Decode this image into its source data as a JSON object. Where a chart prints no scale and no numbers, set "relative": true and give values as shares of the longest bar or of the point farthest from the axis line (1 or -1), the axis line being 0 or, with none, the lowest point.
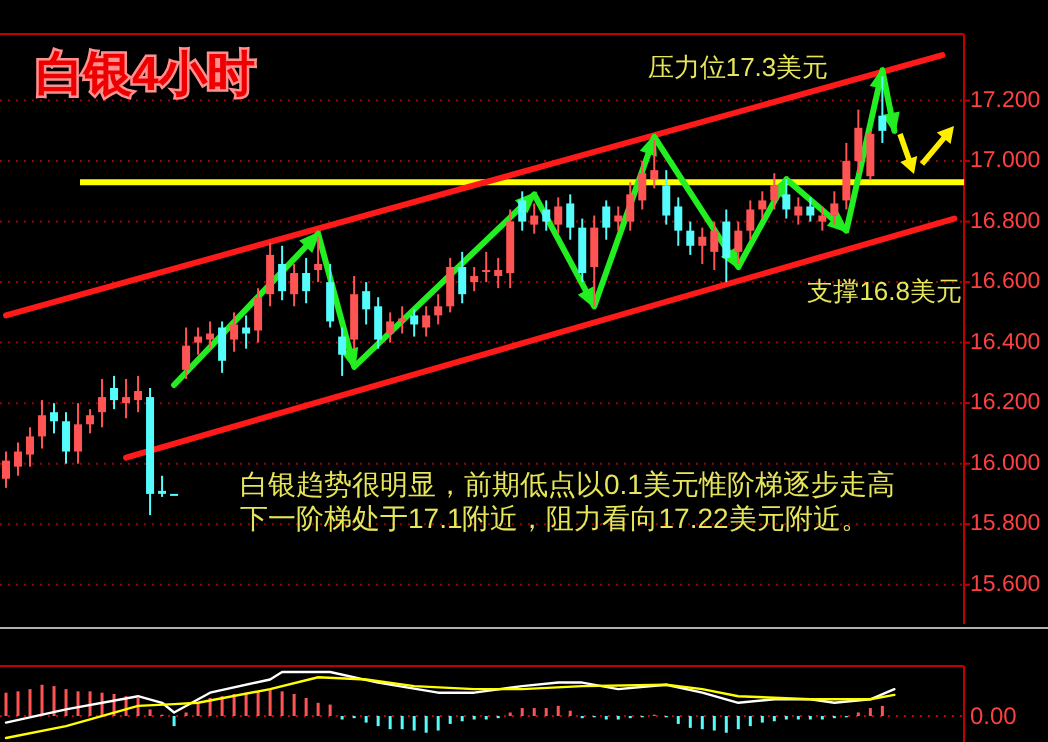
{
  "chart_data": [
    {
      "type": "candlestick",
      "title": "白银4小时",
      "annotations": [
        "压力位17.3美元",
        "支撑16.8美元",
        "白银趋势很明显，前期低点以0.1美元惟阶梯逐步走高",
        "下一阶梯处于17.1附近，阻力看向17.22美元附近。"
      ],
      "categories": [
        null,
        null,
        null,
        null,
        null,
        null,
        null,
        null,
        null,
        null,
        null,
        null,
        null,
        null,
        null,
        null,
        null,
        null,
        null,
        null,
        null,
        null,
        null,
        null,
        null,
        null,
        null,
        null,
        null,
        null,
        null,
        null,
        null,
        null,
        null,
        null,
        null,
        null,
        null,
        null,
        null,
        null,
        null,
        null,
        null,
        null,
        null,
        null,
        null,
        null,
        null,
        null,
        null,
        null,
        null,
        null,
        null,
        null,
        null,
        null,
        null,
        null,
        null,
        null,
        null,
        null,
        null,
        null,
        null,
        null,
        null,
        null,
        null,
        null,
        null,
        null,
        null,
        null,
        null,
        null
      ],
      "ohlc": [
        [
          15.95,
          16.04,
          15.92,
          16.01
        ],
        [
          15.99,
          16.07,
          15.96,
          16.04
        ],
        [
          16.03,
          16.12,
          15.99,
          16.09
        ],
        [
          16.09,
          16.21,
          16.05,
          16.16
        ],
        [
          16.17,
          16.2,
          16.1,
          16.14
        ],
        [
          16.14,
          16.17,
          16.0,
          16.04
        ],
        [
          16.04,
          16.2,
          16.0,
          16.13
        ],
        [
          16.13,
          16.18,
          16.1,
          16.16
        ],
        [
          16.17,
          16.28,
          16.12,
          16.22
        ],
        [
          16.25,
          16.29,
          16.18,
          16.21
        ],
        [
          16.2,
          16.28,
          16.15,
          16.22
        ],
        [
          16.21,
          16.29,
          16.17,
          16.24
        ],
        [
          16.22,
          16.25,
          15.83,
          15.9
        ],
        [
          15.91,
          15.96,
          15.89,
          15.9
        ],
        [
          15.9,
          15.9,
          15.9,
          15.9
        ],
        [
          16.31,
          16.45,
          16.28,
          16.39
        ],
        [
          16.4,
          16.45,
          16.36,
          16.42
        ],
        [
          16.41,
          16.47,
          16.38,
          16.43
        ],
        [
          16.45,
          16.47,
          16.3,
          16.34
        ],
        [
          16.41,
          16.5,
          16.37,
          16.46
        ],
        [
          16.45,
          16.49,
          16.38,
          16.43
        ],
        [
          16.44,
          16.58,
          16.4,
          16.55
        ],
        [
          16.56,
          16.73,
          16.52,
          16.69
        ],
        [
          16.66,
          16.72,
          16.54,
          16.57
        ],
        [
          16.56,
          16.66,
          16.52,
          16.63
        ],
        [
          16.63,
          16.68,
          16.53,
          16.57
        ],
        [
          16.64,
          16.75,
          16.6,
          16.66
        ],
        [
          16.6,
          16.66,
          16.45,
          16.47
        ],
        [
          16.42,
          16.45,
          16.29,
          16.36
        ],
        [
          16.41,
          16.62,
          16.38,
          16.56
        ],
        [
          16.57,
          16.6,
          16.46,
          16.51
        ],
        [
          16.52,
          16.55,
          16.38,
          16.41
        ],
        [
          16.43,
          16.5,
          16.4,
          16.47
        ],
        [
          16.47,
          16.52,
          16.43,
          16.48
        ],
        [
          16.49,
          16.51,
          16.42,
          16.46
        ],
        [
          16.45,
          16.52,
          16.42,
          16.49
        ],
        [
          16.49,
          16.56,
          16.46,
          16.52
        ],
        [
          16.52,
          16.68,
          16.5,
          16.65
        ],
        [
          16.65,
          16.7,
          16.53,
          16.56
        ],
        [
          16.6,
          16.65,
          16.57,
          16.62
        ],
        [
          16.64,
          16.7,
          16.6,
          16.64
        ],
        [
          16.62,
          16.68,
          16.58,
          16.64
        ],
        [
          16.63,
          16.84,
          16.58,
          16.8
        ],
        [
          16.87,
          16.9,
          16.77,
          16.8
        ],
        [
          16.79,
          16.86,
          16.76,
          16.82
        ],
        [
          16.84,
          16.87,
          16.77,
          16.8
        ],
        [
          16.79,
          16.88,
          16.76,
          16.85
        ],
        [
          16.86,
          16.89,
          16.74,
          16.78
        ],
        [
          16.78,
          16.81,
          16.6,
          16.63
        ],
        [
          16.65,
          16.82,
          16.52,
          16.78
        ],
        [
          16.85,
          16.87,
          16.74,
          16.78
        ],
        [
          16.8,
          16.85,
          16.77,
          16.82
        ],
        [
          16.8,
          16.93,
          16.77,
          16.89
        ],
        [
          16.87,
          17.0,
          16.84,
          16.96
        ],
        [
          16.94,
          17.07,
          16.91,
          16.97
        ],
        [
          16.92,
          16.97,
          16.79,
          16.82
        ],
        [
          16.85,
          16.88,
          16.72,
          16.77
        ],
        [
          16.77,
          16.8,
          16.69,
          16.72
        ],
        [
          16.72,
          16.78,
          16.66,
          16.75
        ],
        [
          16.7,
          16.8,
          16.64,
          16.77
        ],
        [
          16.8,
          16.84,
          16.6,
          16.68
        ],
        [
          16.7,
          16.8,
          16.66,
          16.77
        ],
        [
          16.77,
          16.87,
          16.74,
          16.84
        ],
        [
          16.84,
          16.9,
          16.81,
          16.87
        ],
        [
          16.87,
          16.96,
          16.84,
          16.92
        ],
        [
          16.89,
          16.94,
          16.81,
          16.84
        ],
        [
          16.82,
          16.88,
          16.79,
          16.85
        ],
        [
          16.85,
          16.88,
          16.8,
          16.82
        ],
        [
          16.8,
          16.85,
          16.77,
          16.82
        ],
        [
          16.82,
          16.9,
          16.79,
          16.86
        ],
        [
          16.87,
          17.06,
          16.84,
          17.0
        ],
        [
          17.0,
          17.17,
          16.96,
          17.11
        ],
        [
          16.95,
          17.1,
          16.94,
          17.09
        ],
        [
          17.15,
          17.28,
          17.06,
          17.1
        ],
        null,
        null,
        null,
        null,
        null,
        null
      ],
      "colors": [
        "#ff5454",
        "#ff5454",
        "#ff5454",
        "#ff5454",
        "#54fcfc",
        "#54fcfc",
        "#ff5454",
        "#ff5454",
        "#ff5454",
        "#54fcfc",
        "#ff5454",
        "#ff5454",
        "#54fcfc",
        "#54fcfc",
        "#54fcfc",
        "#ff5454",
        "#ff5454",
        "#ff5454",
        "#54fcfc",
        "#ff5454",
        "#54fcfc",
        "#ff5454",
        "#ff5454",
        "#54fcfc",
        "#ff5454",
        "#54fcfc",
        "#ff5454",
        "#54fcfc",
        "#54fcfc",
        "#ff5454",
        "#54fcfc",
        "#54fcfc",
        "#ff5454",
        "#ff5454",
        "#54fcfc",
        "#ff5454",
        "#ff5454",
        "#ff5454",
        "#54fcfc",
        "#ff5454",
        "#ff5454",
        "#ff5454",
        "#ff5454",
        "#54fcfc",
        "#ff5454",
        "#54fcfc",
        "#ff5454",
        "#54fcfc",
        "#54fcfc",
        "#ff5454",
        "#54fcfc",
        "#ff5454",
        "#ff5454",
        "#ff5454",
        "#ff5454",
        "#54fcfc",
        "#54fcfc",
        "#54fcfc",
        "#ff5454",
        "#ff5454",
        "#54fcfc",
        "#ff5454",
        "#ff5454",
        "#ff5454",
        "#ff5454",
        "#54fcfc",
        "#ff5454",
        "#54fcfc",
        "#ff5454",
        "#ff5454",
        "#ff5454",
        "#ff5454",
        "#ff5454",
        "#54fcfc",
        null,
        null,
        null,
        null,
        null,
        null
      ],
      "series": [
        {
          "type": "line",
          "color": "#ff1a1a",
          "values": [
            16.49,
            null,
            null,
            null,
            null,
            null,
            null,
            null,
            null,
            null,
            null,
            null,
            null,
            null,
            null,
            null,
            null,
            null,
            null,
            null,
            null,
            null,
            null,
            null,
            null,
            null,
            null,
            null,
            null,
            null,
            null,
            null,
            null,
            null,
            null,
            null,
            null,
            null,
            null,
            null,
            null,
            null,
            null,
            null,
            null,
            null,
            null,
            null,
            null,
            null,
            null,
            null,
            null,
            null,
            null,
            null,
            null,
            null,
            null,
            null,
            null,
            null,
            null,
            null,
            null,
            null,
            null,
            null,
            null,
            null,
            null,
            null,
            null,
            null,
            null,
            null,
            null,
            null,
            17.35,
            null
          ]
        },
        {
          "type": "line",
          "color": "#ff1a1a",
          "values": [
            null,
            null,
            null,
            null,
            null,
            null,
            null,
            null,
            null,
            null,
            16.02,
            null,
            null,
            null,
            null,
            null,
            null,
            null,
            null,
            null,
            null,
            null,
            null,
            null,
            null,
            null,
            null,
            null,
            null,
            null,
            null,
            null,
            null,
            null,
            null,
            null,
            null,
            null,
            null,
            null,
            null,
            null,
            null,
            null,
            null,
            null,
            null,
            null,
            null,
            null,
            null,
            null,
            null,
            null,
            null,
            null,
            null,
            null,
            null,
            null,
            null,
            null,
            null,
            null,
            null,
            null,
            null,
            null,
            null,
            null,
            null,
            null,
            null,
            null,
            null,
            null,
            null,
            null,
            null,
            16.81
          ]
        },
        {
          "type": "line",
          "color": "#22ee22",
          "values": [
            null,
            null,
            null,
            null,
            null,
            null,
            null,
            null,
            null,
            null,
            null,
            null,
            null,
            null,
            16.26,
            null,
            null,
            null,
            null,
            null,
            null,
            null,
            null,
            null,
            null,
            null,
            16.76,
            null,
            null,
            16.32,
            null,
            null,
            null,
            null,
            null,
            null,
            null,
            null,
            null,
            null,
            null,
            null,
            null,
            null,
            16.89,
            null,
            null,
            null,
            null,
            16.52,
            null,
            null,
            null,
            null,
            17.08,
            null,
            null,
            null,
            null,
            null,
            null,
            16.65,
            null,
            null,
            null,
            16.94,
            null,
            null,
            null,
            null,
            16.77,
            null,
            null,
            17.3,
            17.1,
            null,
            null,
            null,
            null,
            null
          ]
        }
      ],
      "ref_lines": [
        {
          "axis": "y",
          "value": 16.93,
          "color": "#ffff00"
        }
      ],
      "ylim": [
        15.47,
        17.42
      ],
      "yticks": [
        {
          "value": 15.6,
          "label": "15.600"
        },
        {
          "value": 15.8,
          "label": "15.800"
        },
        {
          "value": 16.0,
          "label": "16.000"
        },
        {
          "value": 16.2,
          "label": "16.200"
        },
        {
          "value": 16.4,
          "label": "16.400"
        },
        {
          "value": 16.6,
          "label": "16.600"
        },
        {
          "value": 16.8,
          "label": "16.800"
        },
        {
          "value": 17.0,
          "label": "17.000"
        },
        {
          "value": 17.2,
          "label": "17.200"
        }
      ],
      "grid": "y",
      "tick_labels": "y"
    },
    {
      "type": "bar",
      "relative": true,
      "tick_labels": false,
      "categories": [
        null,
        null,
        null,
        null,
        null,
        null,
        null,
        null,
        null,
        null,
        null,
        null,
        null,
        null,
        null,
        null,
        null,
        null,
        null,
        null,
        null,
        null,
        null,
        null,
        null,
        null,
        null,
        null,
        null,
        null,
        null,
        null,
        null,
        null,
        null,
        null,
        null,
        null,
        null,
        null,
        null,
        null,
        null,
        null,
        null,
        null,
        null,
        null,
        null,
        null,
        null,
        null,
        null,
        null,
        null,
        null,
        null,
        null,
        null,
        null,
        null,
        null,
        null,
        null,
        null,
        null,
        null,
        null,
        null,
        null,
        null,
        null,
        null,
        null,
        null,
        null,
        null,
        null,
        null,
        null
      ],
      "series": [
        {
          "type": "bar",
          "values": [
            0.53,
            0.56,
            0.61,
            0.71,
            0.68,
            0.61,
            0.56,
            0.56,
            0.53,
            0.5,
            0.45,
            0.41,
            0.15,
            0.03,
            -0.23,
            0.08,
            0.3,
            0.41,
            0.45,
            0.5,
            0.53,
            0.56,
            0.61,
            0.56,
            0.5,
            0.41,
            0.3,
            0.26,
            -0.08,
            -0.05,
            -0.15,
            -0.23,
            -0.3,
            -0.3,
            -0.33,
            -0.38,
            -0.33,
            -0.18,
            -0.12,
            -0.08,
            -0.08,
            -0.05,
            0.08,
            0.18,
            0.18,
            0.18,
            0.23,
            0.12,
            -0.05,
            -0.03,
            -0.08,
            -0.08,
            -0.05,
            -0.03,
            0.03,
            -0.03,
            -0.18,
            -0.27,
            -0.3,
            -0.33,
            -0.38,
            -0.3,
            -0.23,
            -0.15,
            -0.12,
            -0.08,
            -0.08,
            -0.08,
            -0.08,
            -0.05,
            -0.03,
            0.08,
            0.18,
            0.23,
            null,
            null,
            null,
            null,
            null,
            null
          ],
          "colors": [
            "#ff5454",
            "#ff5454",
            "#ff5454",
            "#ff5454",
            "#ff5454",
            "#ff5454",
            "#ff5454",
            "#ff5454",
            "#ff5454",
            "#ff5454",
            "#ff5454",
            "#ff5454",
            "#ff5454",
            "#ff5454",
            "#54fcfc",
            "#ff5454",
            "#ff5454",
            "#ff5454",
            "#ff5454",
            "#ff5454",
            "#ff5454",
            "#ff5454",
            "#ff5454",
            "#ff5454",
            "#ff5454",
            "#ff5454",
            "#ff5454",
            "#ff5454",
            "#54fcfc",
            "#54fcfc",
            "#54fcfc",
            "#54fcfc",
            "#54fcfc",
            "#54fcfc",
            "#54fcfc",
            "#54fcfc",
            "#54fcfc",
            "#54fcfc",
            "#54fcfc",
            "#54fcfc",
            "#54fcfc",
            "#54fcfc",
            "#ff5454",
            "#ff5454",
            "#ff5454",
            "#ff5454",
            "#ff5454",
            "#ff5454",
            "#54fcfc",
            "#54fcfc",
            "#54fcfc",
            "#54fcfc",
            "#54fcfc",
            "#54fcfc",
            "#ff5454",
            "#54fcfc",
            "#54fcfc",
            "#54fcfc",
            "#54fcfc",
            "#54fcfc",
            "#54fcfc",
            "#54fcfc",
            "#54fcfc",
            "#54fcfc",
            "#54fcfc",
            "#54fcfc",
            "#54fcfc",
            "#54fcfc",
            "#54fcfc",
            "#54fcfc",
            "#54fcfc",
            "#ff5454",
            "#ff5454",
            "#ff5454",
            null,
            null,
            null,
            null,
            null,
            null
          ]
        },
        {
          "type": "line",
          "color": "#ffffff",
          "values": [
            -0.15,
            null,
            null,
            null,
            null,
            0.15,
            null,
            null,
            null,
            null,
            null,
            0.45,
            null,
            0.3,
            0.08,
            null,
            null,
            0.53,
            null,
            null,
            null,
            null,
            0.83,
            1,
            null,
            null,
            null,
            1,
            null,
            null,
            null,
            0.76,
            null,
            null,
            null,
            null,
            0.53,
            null,
            null,
            0.53,
            null,
            null,
            null,
            0.68,
            null,
            null,
            0.76,
            null,
            0.76,
            null,
            null,
            0.61,
            null,
            null,
            null,
            0.71,
            null,
            null,
            0.53,
            null,
            null,
            0.3,
            null,
            null,
            0.38,
            null,
            null,
            0.38,
            null,
            0.3,
            null,
            null,
            0.38,
            null,
            0.61,
            null,
            null,
            null,
            null,
            null
          ]
        },
        {
          "type": "line",
          "color": "#ffff00",
          "values": [
            -0.5,
            null,
            null,
            null,
            null,
            -0.23,
            null,
            null,
            null,
            null,
            null,
            0.23,
            null,
            null,
            0.27,
            null,
            0.3,
            null,
            null,
            null,
            null,
            null,
            0.61,
            null,
            null,
            null,
            0.88,
            null,
            null,
            null,
            0.83,
            null,
            null,
            null,
            0.68,
            null,
            null,
            null,
            null,
            0.61,
            null,
            null,
            null,
            0.61,
            null,
            null,
            null,
            null,
            0.68,
            null,
            null,
            null,
            null,
            null,
            null,
            0.71,
            null,
            null,
            0.61,
            null,
            null,
            0.45,
            null,
            null,
            null,
            null,
            null,
            0.38,
            null,
            null,
            null,
            null,
            0.38,
            null,
            0.48,
            null,
            null,
            null,
            null,
            null
          ]
        }
      ],
      "ref_lines": [
        {
          "axis": "y",
          "value": 0,
          "label": "0.00",
          "color": "#c00000",
          "line_style": "dotted"
        }
      ]
    }
  ]
}
